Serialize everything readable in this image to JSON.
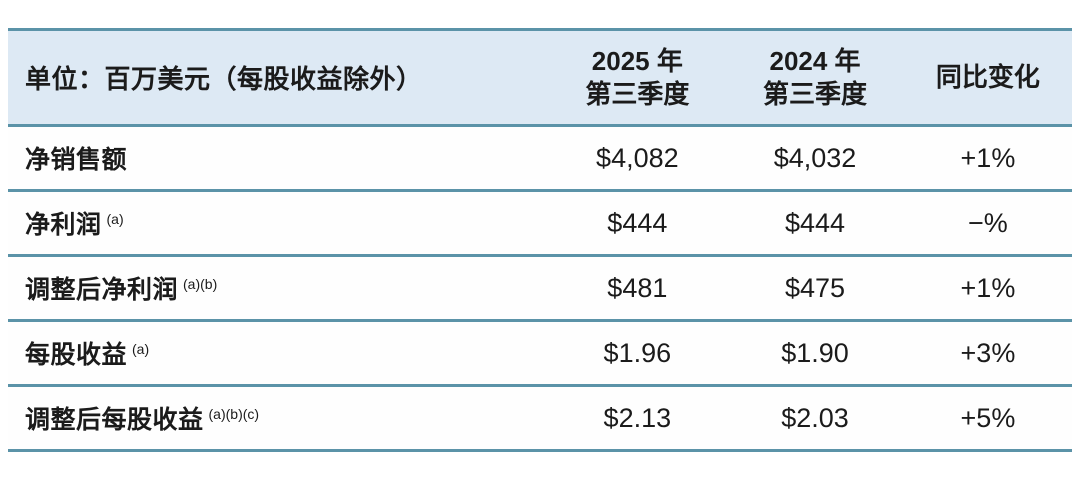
{
  "theme": {
    "rule_color": "#5b93a8",
    "header_bg": "#dde9f4",
    "row_bg": "#fefefe",
    "text_color": "#1b1b1b"
  },
  "table": {
    "unit_label": "单位：百万美元（每股收益除外）",
    "columns": [
      {
        "line1": "2025 年",
        "line2": "第三季度"
      },
      {
        "line1": "2024 年",
        "line2": "第三季度"
      },
      {
        "label": "同比变化"
      }
    ],
    "rows": [
      {
        "label": "净销售额",
        "superscript": "",
        "q3_2025": "$4,082",
        "q3_2024": "$4,032",
        "yoy": "+1%"
      },
      {
        "label": "净利润",
        "superscript": "(a)",
        "q3_2025": "$444",
        "q3_2024": "$444",
        "yoy": "−%"
      },
      {
        "label": "调整后净利润",
        "superscript": "(a)(b)",
        "q3_2025": "$481",
        "q3_2024": "$475",
        "yoy": "+1%"
      },
      {
        "label": "每股收益",
        "superscript": "(a)",
        "q3_2025": "$1.96",
        "q3_2024": "$1.90",
        "yoy": "+3%"
      },
      {
        "label": "调整后每股收益",
        "superscript": "(a)(b)(c)",
        "q3_2025": "$2.13",
        "q3_2024": "$2.03",
        "yoy": "+5%"
      }
    ]
  },
  "chart_data": {
    "type": "table",
    "title": "单位：百万美元（每股收益除外）",
    "columns": [
      "单位：百万美元（每股收益除外）",
      "2025 年第三季度",
      "2024 年第三季度",
      "同比变化"
    ],
    "rows": [
      [
        "净销售额",
        "$4,082",
        "$4,032",
        "+1%"
      ],
      [
        "净利润 (a)",
        "$444",
        "$444",
        "−%"
      ],
      [
        "调整后净利润 (a)(b)",
        "$481",
        "$475",
        "+1%"
      ],
      [
        "每股收益 (a)",
        "$1.96",
        "$1.90",
        "+3%"
      ],
      [
        "调整后每股收益 (a)(b)(c)",
        "$2.13",
        "$2.03",
        "+5%"
      ]
    ]
  }
}
